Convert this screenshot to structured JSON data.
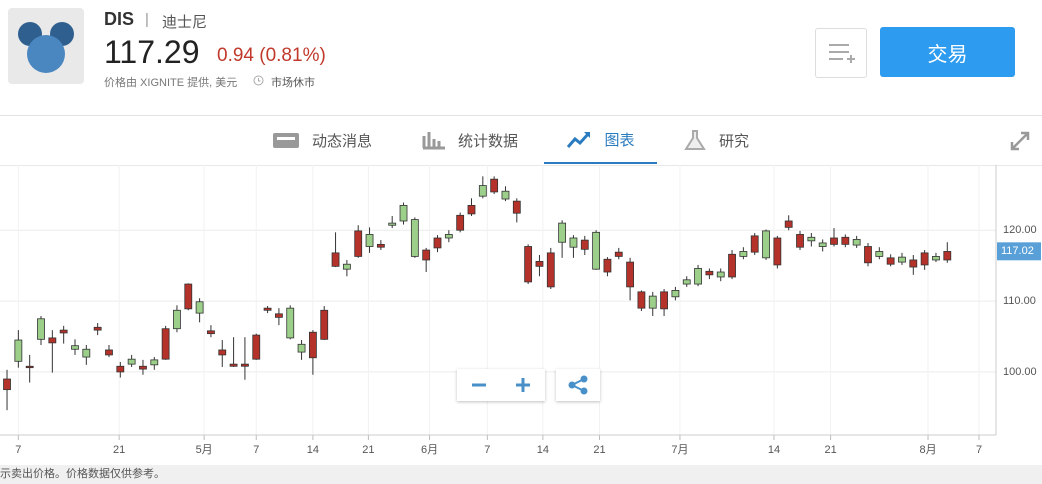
{
  "header": {
    "symbol": "DIS",
    "separator": "|",
    "name": "迪士尼",
    "price": "117.29",
    "change": "0.94 (0.81%)",
    "source": "价格由 XIGNITE 提供, 美元",
    "status": "市场休市",
    "trade_button": "交易"
  },
  "tabs": [
    "动态消息",
    "统计数据",
    "图表",
    "研究"
  ],
  "chart_data": {
    "type": "candlestick",
    "x": [
      0,
      1,
      2,
      3,
      4,
      5,
      6,
      7,
      8,
      9,
      10,
      11,
      12,
      13,
      14,
      15,
      16,
      17,
      18,
      19,
      20,
      21,
      22,
      23,
      24,
      25,
      26,
      27,
      28,
      29,
      30,
      31,
      32,
      33,
      34,
      35,
      36,
      37,
      38,
      39,
      40,
      41,
      42,
      43,
      44,
      45,
      46,
      47,
      48,
      49,
      50,
      51,
      52,
      53,
      54,
      55,
      56,
      57,
      58,
      59,
      60,
      61,
      62,
      63,
      64,
      65,
      66,
      67,
      68,
      69,
      70,
      71,
      72,
      73,
      74,
      75,
      76,
      77,
      78,
      79,
      80,
      81,
      82,
      83
    ],
    "open": [
      99.0,
      101.5,
      100.8,
      104.6,
      104.8,
      105.9,
      103.2,
      102.1,
      106.3,
      103.1,
      100.8,
      101.1,
      100.8,
      101,
      106.1,
      106.1,
      112.4,
      108.3,
      105.8,
      103.1,
      101.1,
      101.1,
      105.2,
      109,
      108.2,
      104.8,
      102.8,
      105.6,
      108.7,
      116.8,
      114.5,
      119.9,
      117.7,
      118,
      120.7,
      121.3,
      116.3,
      117.2,
      118.9,
      118.9,
      122.1,
      123.5,
      124.8,
      127.2,
      124.4,
      124.1,
      117.7,
      115.6,
      116.8,
      118.3,
      117.6,
      118.6,
      114.5,
      115.9,
      116.9,
      115.5,
      111.3,
      109,
      111.3,
      110.6,
      112.4,
      112.4,
      114.2,
      113.4,
      116.6,
      116.3,
      119.2,
      116.1,
      118.9,
      121.3,
      119.4,
      118.5,
      117.7,
      118.9,
      119,
      117.9,
      117.7,
      116.3,
      116.1,
      115.5,
      115.8,
      116.8,
      115.8,
      117
    ],
    "high": [
      100.3,
      105.9,
      102.4,
      107.9,
      105.9,
      106.5,
      104.6,
      103.8,
      106.9,
      103.8,
      101.4,
      102.4,
      101.7,
      102.1,
      106.5,
      109.4,
      112.5,
      110.4,
      106.6,
      104.5,
      104.9,
      104.9,
      105.4,
      109.3,
      109,
      109.4,
      104.5,
      105.9,
      109.3,
      119.7,
      115.8,
      120.7,
      120.4,
      118.6,
      122,
      123.9,
      121.8,
      117.5,
      119.3,
      120,
      122.5,
      124.5,
      127.6,
      127.6,
      126.2,
      124.5,
      118,
      116.5,
      117.5,
      121.4,
      119.3,
      119.2,
      120,
      116.2,
      117.5,
      116.1,
      111.5,
      111.3,
      111.7,
      112,
      113.5,
      115.1,
      114.6,
      114.6,
      117.2,
      117.6,
      119.6,
      120.1,
      119.2,
      122.1,
      119.9,
      119.6,
      118.7,
      120.3,
      119.4,
      119.2,
      118.2,
      117.6,
      116.6,
      116.8,
      116.5,
      117.2,
      116.8,
      118.3
    ],
    "low": [
      94.6,
      100.6,
      98.5,
      103.8,
      99.9,
      104,
      102.4,
      101,
      105.2,
      102.1,
      99.2,
      100.7,
      99.6,
      100.3,
      101.7,
      105.6,
      108.7,
      107,
      104.9,
      100.7,
      100.7,
      98.9,
      101.7,
      108.3,
      106.6,
      104.6,
      101.7,
      99.6,
      104.5,
      114.8,
      113.5,
      116.1,
      116.8,
      117.2,
      120.3,
      120.8,
      116.1,
      114.1,
      116.9,
      118.3,
      119.7,
      122,
      124.5,
      125.1,
      124.1,
      121.1,
      112.4,
      113.5,
      111.7,
      116.1,
      116.1,
      116.5,
      114.4,
      113.5,
      115.9,
      110.1,
      108.6,
      107.9,
      107.9,
      110.1,
      112,
      112.1,
      113.1,
      112.8,
      113.1,
      115.9,
      116.5,
      115.8,
      114.6,
      120,
      117.2,
      117.7,
      117,
      117.7,
      117.6,
      117.5,
      114.9,
      115.9,
      114.9,
      115.1,
      113.7,
      114.4,
      115.5,
      115.4
    ],
    "close": [
      97.5,
      104.5,
      100.6,
      107.5,
      104.1,
      105.5,
      103.7,
      103.2,
      105.9,
      102.4,
      100,
      101.8,
      100.4,
      101.7,
      101.8,
      108.7,
      108.9,
      109.9,
      105.4,
      102.4,
      100.8,
      100.8,
      101.8,
      108.7,
      107.7,
      109,
      103.9,
      102,
      104.6,
      114.9,
      115.2,
      116.3,
      119.4,
      117.6,
      121,
      123.5,
      121.5,
      115.8,
      117.5,
      119.4,
      120,
      122.3,
      126.3,
      125.4,
      125.5,
      122.4,
      112.7,
      114.9,
      112,
      121,
      118.9,
      117.3,
      119.7,
      114.1,
      116.3,
      112,
      109,
      110.7,
      108.9,
      111.5,
      113,
      114.6,
      113.7,
      114.1,
      113.4,
      117,
      116.9,
      119.9,
      115.1,
      120.4,
      117.6,
      119,
      118.2,
      118,
      118,
      118.7,
      115.4,
      117,
      115.2,
      116.2,
      114.8,
      115.1,
      116.3,
      115.8
    ],
    "up_color": "#9ccf8a",
    "down_color": "#b5322a",
    "xlim": [
      -0.62,
      87.3
    ],
    "xticks": [
      {
        "value": 1,
        "label": "7"
      },
      {
        "value": 9.9,
        "label": "21"
      },
      {
        "value": 17.4,
        "label": "5月"
      },
      {
        "value": 22,
        "label": "7"
      },
      {
        "value": 27,
        "label": "14"
      },
      {
        "value": 31.9,
        "label": "21"
      },
      {
        "value": 37.3,
        "label": "6月"
      },
      {
        "value": 42.4,
        "label": "7"
      },
      {
        "value": 47.3,
        "label": "14"
      },
      {
        "value": 52.3,
        "label": "21"
      },
      {
        "value": 59.4,
        "label": "7月"
      },
      {
        "value": 67.7,
        "label": "14"
      },
      {
        "value": 72.7,
        "label": "21"
      },
      {
        "value": 81.3,
        "label": "8月"
      },
      {
        "value": 85.8,
        "label": "7"
      }
    ],
    "ylim": [
      91.1,
      129.2
    ],
    "yticks": [
      {
        "value": 100,
        "label": "100.00"
      },
      {
        "value": 110,
        "label": "110.00"
      },
      {
        "value": 120,
        "label": "120.00"
      }
    ],
    "grid": true,
    "last_price": {
      "value": 117.02,
      "label": "117.02"
    },
    "last_price_color": "#5aa0d8"
  },
  "footer": "示卖出价格。价格数据仅供参考。"
}
